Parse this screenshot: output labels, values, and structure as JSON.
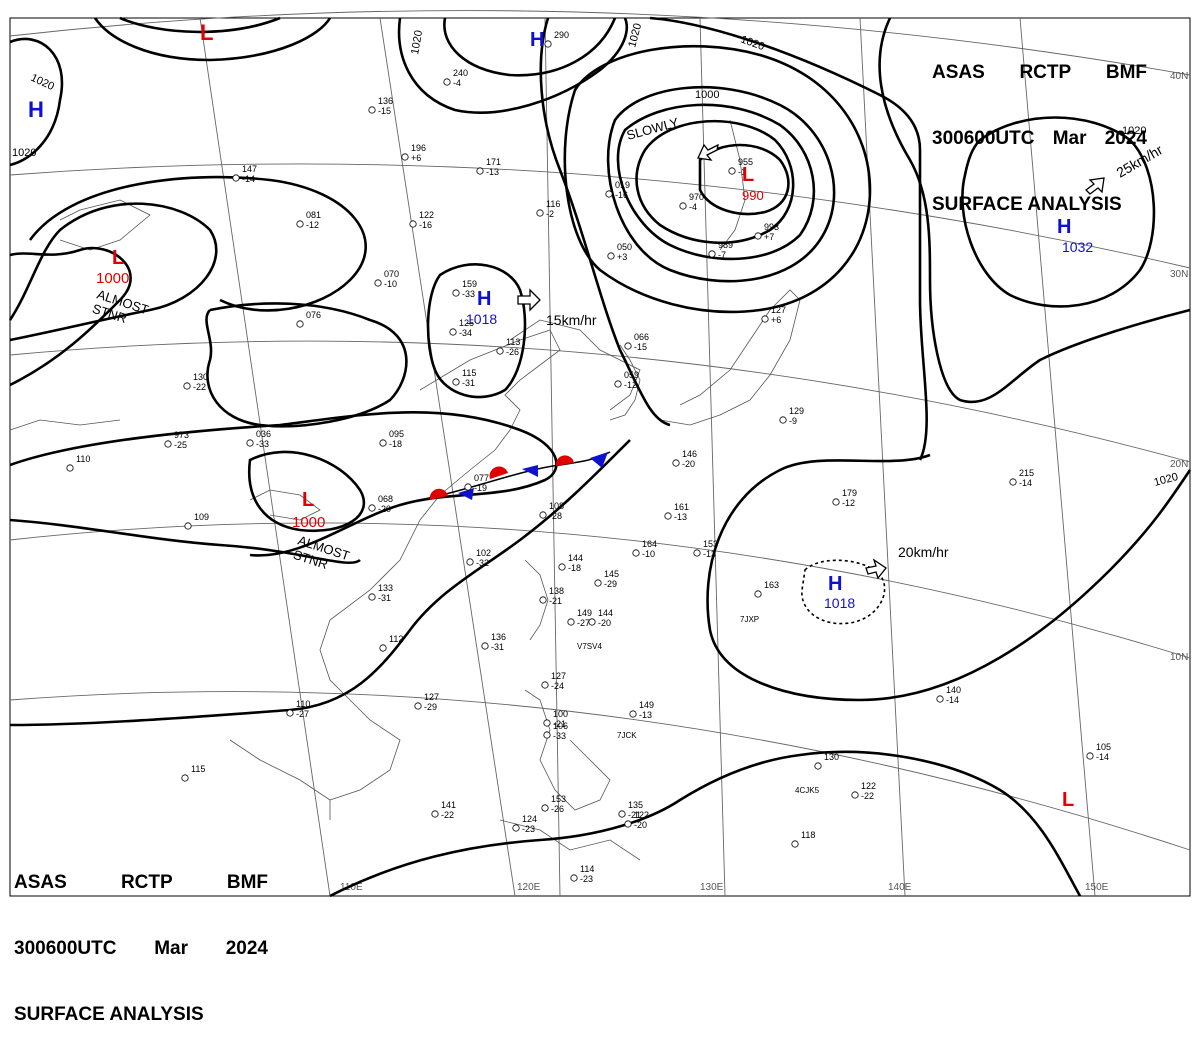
{
  "header": {
    "agency": "ASAS",
    "station": "RCTP",
    "office": "BMF",
    "time": "300600UTC",
    "month": "Mar",
    "year": "2024",
    "title": "SURFACE ANALYSIS"
  },
  "colors": {
    "low": "#e00000",
    "high": "#1010d0",
    "isobar": "#000000",
    "grid": "#666666",
    "coast": "#555555"
  },
  "isobar_labels": [
    "1020",
    "1020",
    "1020",
    "1020",
    "1020",
    "1020",
    "1000",
    "1020"
  ],
  "latitude_labels": [
    "40N",
    "30N",
    "20N",
    "10N"
  ],
  "longitude_labels": [
    "110E",
    "120E",
    "130E",
    "140E",
    "150E"
  ],
  "pressure_centers": [
    {
      "type": "H",
      "value": ""
    },
    {
      "type": "H",
      "value": ""
    },
    {
      "type": "L",
      "value": ""
    },
    {
      "type": "L",
      "value": "1000",
      "note": "ALMOST\nSTNR"
    },
    {
      "type": "H",
      "value": "1018"
    },
    {
      "type": "L",
      "value": "990"
    },
    {
      "type": "H",
      "value": "1032"
    },
    {
      "type": "L",
      "value": "1000",
      "note": "ALMOST\nSTNR"
    },
    {
      "type": "H",
      "value": "1018"
    },
    {
      "type": "L",
      "value": ""
    }
  ],
  "motions": [
    "15km/hr",
    "SLOWLY",
    "25km/hr",
    "20km/hr"
  ],
  "stations": [
    {
      "t": "290",
      "p": ""
    },
    {
      "t": "240",
      "p": "-4"
    },
    {
      "t": "136",
      "p": "-15"
    },
    {
      "t": "196",
      "p": "+6"
    },
    {
      "t": "171",
      "p": "-13"
    },
    {
      "t": "147",
      "p": "-14"
    },
    {
      "t": "081",
      "p": "-12"
    },
    {
      "t": "122",
      "p": "-16"
    },
    {
      "t": "116",
      "p": "-2"
    },
    {
      "t": "019",
      "p": "-16"
    },
    {
      "t": "970",
      "p": "-4"
    },
    {
      "t": "955",
      "p": "-1"
    },
    {
      "t": "050",
      "p": "+3"
    },
    {
      "t": "989",
      "p": "-7"
    },
    {
      "t": "993",
      "p": "+7"
    },
    {
      "t": "070",
      "p": "-10"
    },
    {
      "t": "159",
      "p": "-33"
    },
    {
      "t": "125",
      "p": "-34"
    },
    {
      "t": "113",
      "p": "-26"
    },
    {
      "t": "115",
      "p": "-31"
    },
    {
      "t": "076",
      "p": ""
    },
    {
      "t": "066",
      "p": "-15"
    },
    {
      "t": "059",
      "p": "-12"
    },
    {
      "t": "127",
      "p": "+6"
    },
    {
      "t": "130",
      "p": "-22"
    },
    {
      "t": "973",
      "p": "-25"
    },
    {
      "t": "036",
      "p": "-33"
    },
    {
      "t": "095",
      "p": "-18"
    },
    {
      "t": "110",
      "p": ""
    },
    {
      "t": "109",
      "p": ""
    },
    {
      "t": "068",
      "p": "-20"
    },
    {
      "t": "077",
      "p": "-19"
    },
    {
      "t": "108",
      "p": "-28"
    },
    {
      "t": "102",
      "p": "-32"
    },
    {
      "t": "146",
      "p": "-20"
    },
    {
      "t": "161",
      "p": "-13"
    },
    {
      "t": "164",
      "p": "-10"
    },
    {
      "t": "153",
      "p": "-13"
    },
    {
      "t": "129",
      "p": "-9"
    },
    {
      "t": "144",
      "p": "-18"
    },
    {
      "t": "145",
      "p": "-29"
    },
    {
      "t": "138",
      "p": "-21"
    },
    {
      "t": "149",
      "p": "-27"
    },
    {
      "t": "144",
      "p": "-20"
    },
    {
      "t": "179",
      "p": "-12"
    },
    {
      "t": "215",
      "p": "-14"
    },
    {
      "t": "163",
      "p": ""
    },
    {
      "t": "133",
      "p": "-31"
    },
    {
      "t": "112",
      "p": ""
    },
    {
      "t": "136",
      "p": "-31"
    },
    {
      "t": "127",
      "p": "-29"
    },
    {
      "t": "110",
      "p": "-27"
    },
    {
      "t": "127",
      "p": "-24"
    },
    {
      "t": "100",
      "p": "-21"
    },
    {
      "t": "106",
      "p": "-33"
    },
    {
      "t": "149",
      "p": "-13"
    },
    {
      "t": "140",
      "p": "-14"
    },
    {
      "t": "105",
      "p": "-14"
    },
    {
      "t": "130",
      "p": ""
    },
    {
      "t": "122",
      "p": "-22"
    },
    {
      "t": "115",
      "p": ""
    },
    {
      "t": "141",
      "p": "-22"
    },
    {
      "t": "153",
      "p": "-26"
    },
    {
      "t": "135",
      "p": "-21"
    },
    {
      "t": "122",
      "p": "-20"
    },
    {
      "t": "124",
      "p": "-23"
    },
    {
      "t": "118",
      "p": ""
    },
    {
      "t": "114",
      "p": "-23"
    }
  ],
  "ship_ids": [
    "7JXP",
    "V7SV4",
    "7JCK",
    "4CJK5"
  ]
}
